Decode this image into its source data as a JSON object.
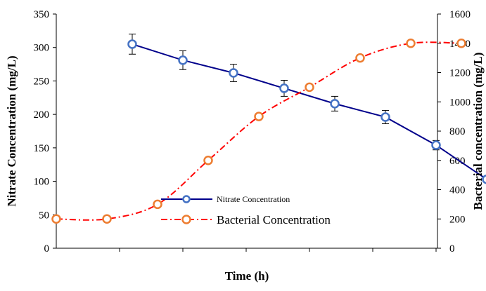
{
  "chart_data": {
    "type": "line",
    "xlabel": "Time (h)",
    "ylabel_left": "Nitrate Concentration (mg/L)",
    "ylabel_right": "Bacterial concentration (mg/L)",
    "ylim_left": [
      0,
      350
    ],
    "ylim_right": [
      0,
      1600
    ],
    "yticks_left": [
      "0",
      "50",
      "100",
      "150",
      "200",
      "250",
      "300",
      "350"
    ],
    "yticks_right": [
      "0",
      "200",
      "400",
      "600",
      "800",
      "1000",
      "1200",
      "1400",
      "1600"
    ],
    "x_tick_count": 6,
    "grid": false,
    "legend_position": "bottom-center",
    "series": [
      {
        "name": "Nitrate Concentration",
        "axis": "left",
        "color": "#00008b",
        "marker_color": "#4472c4",
        "line_style": "solid",
        "x": [
          0.6,
          1.0,
          1.4,
          1.8,
          2.2,
          2.6,
          3.0,
          3.4,
          3.8
        ],
        "values": [
          305,
          281,
          262,
          239,
          216,
          196,
          154,
          103,
          103
        ],
        "error": [
          15,
          14,
          13,
          12,
          11,
          10,
          7,
          3,
          3
        ]
      },
      {
        "name": "Bacterial Concentration",
        "axis": "right",
        "color": "#ff0000",
        "marker_color": "#ed7d31",
        "line_style": "dash-dot",
        "x": [
          0.0,
          0.4,
          0.8,
          1.2,
          1.6,
          2.0,
          2.4,
          2.8,
          3.2
        ],
        "values": [
          200,
          200,
          300,
          600,
          900,
          1100,
          1300,
          1400,
          1400
        ]
      }
    ]
  }
}
